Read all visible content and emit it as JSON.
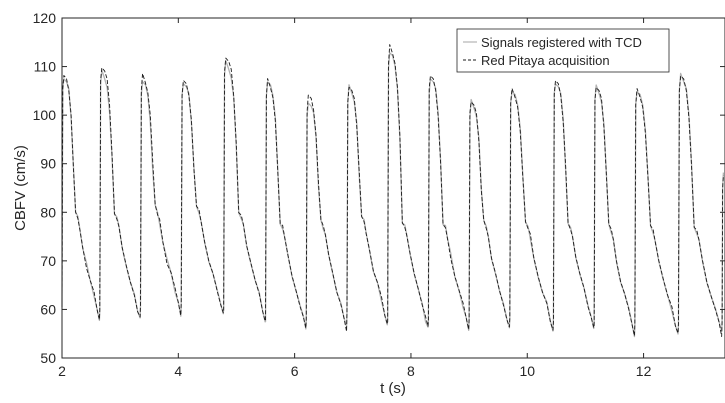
{
  "chart_data": {
    "type": "line",
    "title": "",
    "xlabel": "t (s)",
    "ylabel": "CBFV (cm/s)",
    "xlim": [
      2,
      13.4
    ],
    "ylim": [
      50,
      120
    ],
    "x_ticks": [
      2,
      4,
      6,
      8,
      10,
      12
    ],
    "y_ticks": [
      50,
      60,
      70,
      80,
      90,
      100,
      110,
      120
    ],
    "x_tick_labels": [
      "2",
      "4",
      "6",
      "8",
      "10",
      "12"
    ],
    "y_tick_labels": [
      "50",
      "60",
      "70",
      "80",
      "90",
      "100",
      "110",
      "120"
    ],
    "grid": false,
    "legend_position": "top-right",
    "series": [
      {
        "name": "Signals registered with TCD",
        "color": "#b3b3b3",
        "style": "solid",
        "beats": [
          {
            "start": 2.0,
            "peak": 108,
            "min": 58
          },
          {
            "start": 2.65,
            "peak": 109,
            "min": 58
          },
          {
            "start": 3.35,
            "peak": 107,
            "min": 59
          },
          {
            "start": 4.05,
            "peak": 107,
            "min": 59
          },
          {
            "start": 4.78,
            "peak": 111,
            "min": 58
          },
          {
            "start": 5.5,
            "peak": 107,
            "min": 56
          },
          {
            "start": 6.2,
            "peak": 103,
            "min": 56
          },
          {
            "start": 6.9,
            "peak": 106,
            "min": 57
          },
          {
            "start": 7.6,
            "peak": 113,
            "min": 56
          },
          {
            "start": 8.3,
            "peak": 108,
            "min": 56
          },
          {
            "start": 9.0,
            "peak": 103,
            "min": 56
          },
          {
            "start": 9.7,
            "peak": 105,
            "min": 56
          },
          {
            "start": 10.45,
            "peak": 107,
            "min": 56
          },
          {
            "start": 11.15,
            "peak": 106,
            "min": 55
          },
          {
            "start": 11.85,
            "peak": 105,
            "min": 55
          },
          {
            "start": 12.6,
            "peak": 108,
            "min": 55
          },
          {
            "start": 13.35,
            "peak": 88,
            "min": 55
          }
        ]
      },
      {
        "name": "Red Pitaya acquisition",
        "color": "#1a1a1a",
        "style": "dashed",
        "beats": [
          {
            "start": 2.0,
            "peak": 108,
            "min": 58
          },
          {
            "start": 2.65,
            "peak": 110,
            "min": 58
          },
          {
            "start": 3.35,
            "peak": 108,
            "min": 59
          },
          {
            "start": 4.05,
            "peak": 107,
            "min": 59
          },
          {
            "start": 4.78,
            "peak": 112,
            "min": 58
          },
          {
            "start": 5.5,
            "peak": 107,
            "min": 56
          },
          {
            "start": 6.2,
            "peak": 104,
            "min": 56
          },
          {
            "start": 6.9,
            "peak": 106,
            "min": 57
          },
          {
            "start": 7.6,
            "peak": 114,
            "min": 56
          },
          {
            "start": 8.3,
            "peak": 108,
            "min": 56
          },
          {
            "start": 9.0,
            "peak": 103,
            "min": 56
          },
          {
            "start": 9.7,
            "peak": 105,
            "min": 56
          },
          {
            "start": 10.45,
            "peak": 107,
            "min": 56
          },
          {
            "start": 11.15,
            "peak": 106,
            "min": 55
          },
          {
            "start": 11.85,
            "peak": 105,
            "min": 55
          },
          {
            "start": 12.6,
            "peak": 108,
            "min": 55
          },
          {
            "start": 13.35,
            "peak": 88,
            "min": 55
          }
        ]
      }
    ]
  }
}
